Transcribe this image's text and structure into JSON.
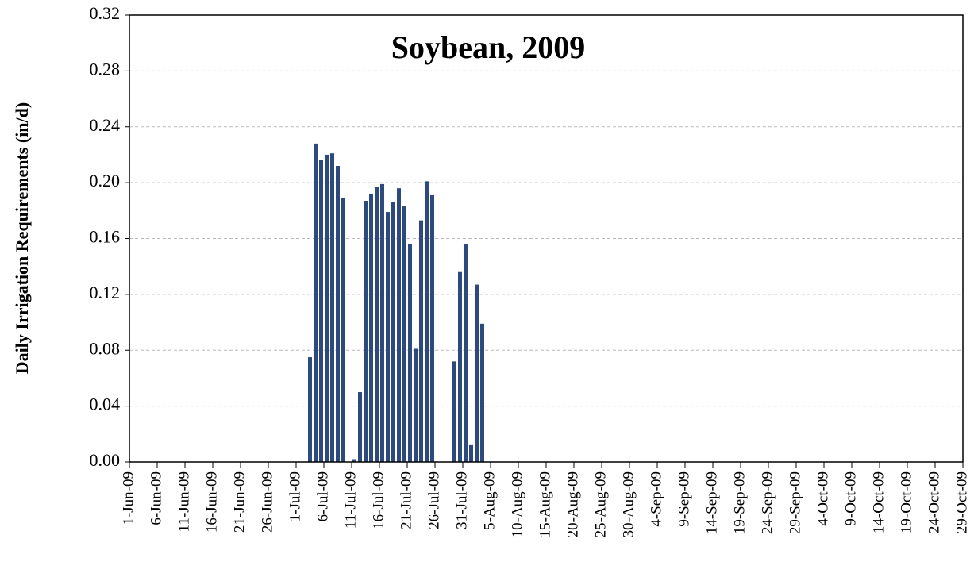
{
  "chart_data": {
    "type": "bar",
    "title": "Soybean, 2009",
    "y_label": "Daily Irrigation Requirements (in/d)",
    "color": "#2e4a7d",
    "grid": true,
    "ylim": [
      0,
      0.32
    ],
    "yticks": [
      {
        "value": 0,
        "label": "0.00"
      },
      0.04,
      0.08,
      0.12,
      0.16,
      {
        "value": 0.2,
        "label": "0.20"
      },
      0.24,
      0.28,
      0.32
    ],
    "categories": [
      "1-Jun-09",
      null,
      null,
      null,
      null,
      "6-Jun-09",
      null,
      null,
      null,
      null,
      "11-Jun-09",
      null,
      null,
      null,
      null,
      "16-Jun-09",
      null,
      null,
      null,
      null,
      "21-Jun-09",
      null,
      null,
      null,
      null,
      "26-Jun-09",
      null,
      null,
      null,
      null,
      "1-Jul-09",
      null,
      null,
      null,
      null,
      "6-Jul-09",
      null,
      null,
      null,
      null,
      "11-Jul-09",
      null,
      null,
      null,
      null,
      "16-Jul-09",
      null,
      null,
      null,
      null,
      "21-Jul-09",
      null,
      null,
      null,
      null,
      "26-Jul-09",
      null,
      null,
      null,
      null,
      "31-Jul-09",
      null,
      null,
      null,
      null,
      "5-Aug-09",
      null,
      null,
      null,
      null,
      "10-Aug-09",
      null,
      null,
      null,
      null,
      "15-Aug-09",
      null,
      null,
      null,
      null,
      "20-Aug-09",
      null,
      null,
      null,
      null,
      "25-Aug-09",
      null,
      null,
      null,
      null,
      "30-Aug-09",
      null,
      null,
      null,
      null,
      "4-Sep-09",
      null,
      null,
      null,
      null,
      "9-Sep-09",
      null,
      null,
      null,
      null,
      "14-Sep-09",
      null,
      null,
      null,
      null,
      "19-Sep-09",
      null,
      null,
      null,
      null,
      "24-Sep-09",
      null,
      null,
      null,
      null,
      "29-Sep-09",
      null,
      null,
      null,
      null,
      "4-Oct-09",
      null,
      null,
      null,
      null,
      "9-Oct-09",
      null,
      null,
      null,
      null,
      "14-Oct-09",
      null,
      null,
      null,
      null,
      "19-Oct-09",
      null,
      null,
      null,
      null,
      "24-Oct-09",
      null,
      null,
      null,
      null,
      "29-Oct-09"
    ],
    "values": [
      0,
      0,
      0,
      0,
      0,
      0,
      0,
      0,
      0,
      0,
      0,
      0,
      0,
      0,
      0,
      0,
      0,
      0,
      0,
      0,
      0,
      0,
      0,
      0,
      0,
      0,
      0,
      0,
      0,
      0,
      0,
      0,
      0.075,
      0.228,
      0.216,
      0.22,
      0.221,
      0.212,
      0.189,
      0,
      0.002,
      0.05,
      0.187,
      0.192,
      0.197,
      0.199,
      0.179,
      0.186,
      0.196,
      0.183,
      0.156,
      0.081,
      0.173,
      0.201,
      0.191,
      0,
      0,
      0,
      0.072,
      0.136,
      0.156,
      0.012,
      0.127,
      0.099,
      0,
      0,
      0,
      0,
      0,
      0,
      0,
      0,
      0,
      0,
      0,
      0,
      0,
      0,
      0,
      0,
      0,
      0,
      0,
      0,
      0,
      0,
      0,
      0,
      0,
      0,
      0,
      0,
      0,
      0,
      0,
      0,
      0,
      0,
      0,
      0,
      0,
      0,
      0,
      0,
      0,
      0,
      0,
      0,
      0,
      0,
      0,
      0,
      0,
      0,
      0,
      0,
      0,
      0,
      0,
      0,
      0,
      0,
      0,
      0,
      0,
      0,
      0,
      0,
      0,
      0,
      0,
      0,
      0,
      0,
      0,
      0,
      0,
      0,
      0,
      0,
      0,
      0,
      0,
      0,
      0,
      0,
      0,
      0,
      0,
      0,
      0
    ]
  }
}
